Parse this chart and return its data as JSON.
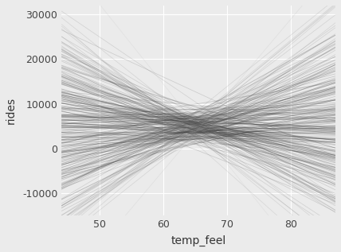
{
  "title": "",
  "xlabel": "temp_feel",
  "ylabel": "rides",
  "xlim": [
    44,
    87
  ],
  "ylim": [
    -15000,
    32000
  ],
  "xticks": [
    50,
    60,
    70,
    80
  ],
  "yticks": [
    -10000,
    0,
    10000,
    20000,
    30000
  ],
  "n_lines": 250,
  "x_range": [
    44,
    87
  ],
  "focal_x": 65,
  "focal_y_mean": 5000,
  "focal_y_std": 2000,
  "slope_mean": 0,
  "slope_std": 550,
  "line_alpha": 0.22,
  "line_color": "0.25",
  "bg_color": "#EBEBEB",
  "panel_bg": "#EBEBEB",
  "grid_color": "#ffffff",
  "seed": 42
}
